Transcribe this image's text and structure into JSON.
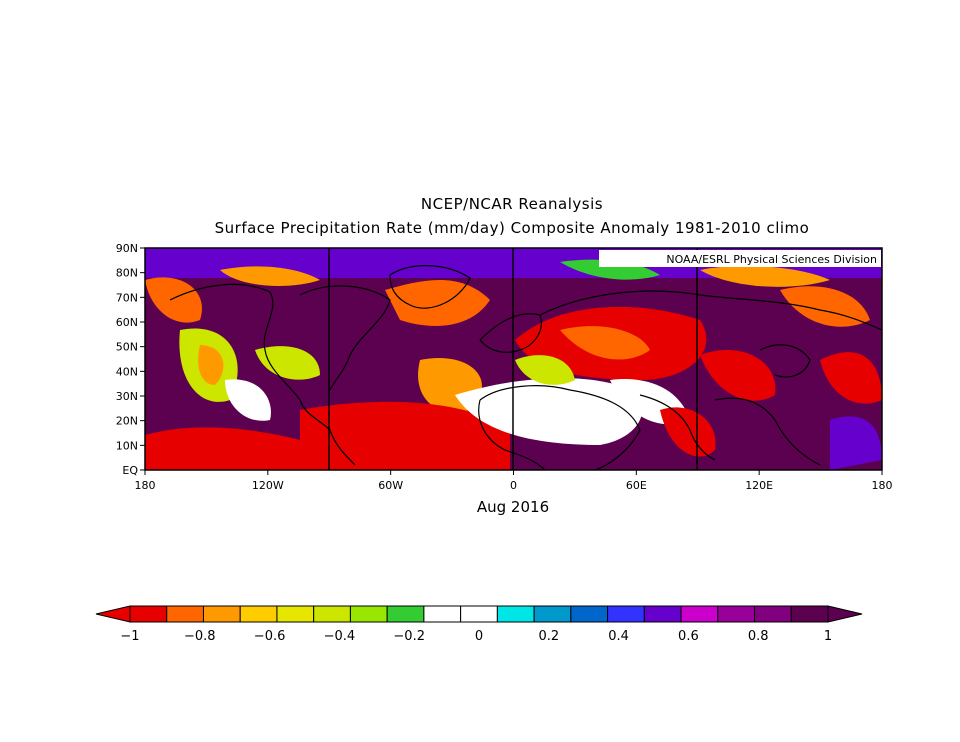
{
  "title_line1": "NCEP/NCAR Reanalysis",
  "title_line2": "Surface Precipitation Rate (mm/day) Composite Anomaly 1981-2010 climo",
  "credit": "NOAA/ESRL Physical Sciences Division",
  "period_label": "Aug 2016",
  "lat_ticks": [
    "90N",
    "80N",
    "70N",
    "60N",
    "50N",
    "40N",
    "30N",
    "20N",
    "10N",
    "EQ"
  ],
  "lon_ticks": [
    "180",
    "120W",
    "60W",
    "0",
    "60E",
    "120E",
    "180"
  ],
  "colorbar": {
    "colors": [
      "#e60000",
      "#ff6600",
      "#ff9900",
      "#ffcc00",
      "#e6e600",
      "#cce600",
      "#99e600",
      "#33cc33",
      "#ffffff",
      "#ffffff",
      "#00e6e6",
      "#0099cc",
      "#0066cc",
      "#3333ff",
      "#6600cc",
      "#cc00cc",
      "#990099",
      "#800080",
      "#5c0050"
    ],
    "labels": [
      "-1",
      "-0.8",
      "-0.6",
      "-0.4",
      "-0.2",
      "0",
      "0.2",
      "0.4",
      "0.6",
      "0.8",
      "1"
    ],
    "min_color": "#e60000",
    "max_color": "#5c0050"
  },
  "map_palette": {
    "dry_strong": "#e60000",
    "dry": "#ff6600",
    "near_zero": "#ffffff",
    "wet": "#6600cc",
    "wet_strong": "#5c0050",
    "coast": "#000000"
  }
}
